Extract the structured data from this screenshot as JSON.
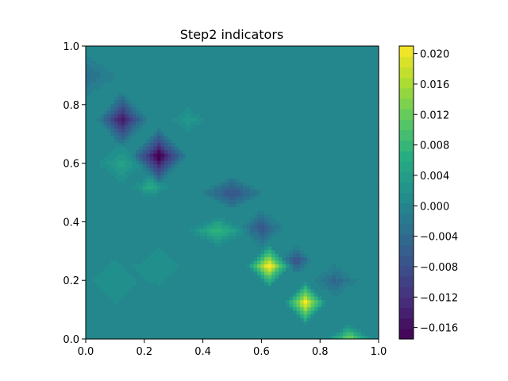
{
  "chart_data": {
    "type": "heatmap",
    "title": "Step2 indicators",
    "xlabel": "",
    "ylabel": "",
    "xlim": [
      0,
      1
    ],
    "ylim": [
      0,
      1
    ],
    "x_ticks": [
      "0.0",
      "0.2",
      "0.4",
      "0.6",
      "0.8",
      "1.0"
    ],
    "y_ticks": [
      "0.0",
      "0.2",
      "0.4",
      "0.6",
      "0.8",
      "1.0"
    ],
    "colormap": "viridis",
    "colorbar": {
      "min": -0.0175,
      "max": 0.021,
      "ticks": [
        "−0.016",
        "−0.012",
        "−0.008",
        "−0.004",
        "0.000",
        "0.004",
        "0.008",
        "0.012",
        "0.016",
        "0.020"
      ]
    },
    "grid": false,
    "features": [
      {
        "x": 0.0,
        "y": 0.9,
        "value": -0.003,
        "rx": 0.12,
        "ry": 0.08
      },
      {
        "x": 0.125,
        "y": 0.75,
        "value": -0.013,
        "rx": 0.09,
        "ry": 0.1
      },
      {
        "x": 0.25,
        "y": 0.625,
        "value": -0.016,
        "rx": 0.1,
        "ry": 0.1
      },
      {
        "x": 0.12,
        "y": 0.6,
        "value": 0.004,
        "rx": 0.1,
        "ry": 0.09
      },
      {
        "x": 0.35,
        "y": 0.75,
        "value": 0.003,
        "rx": 0.08,
        "ry": 0.06
      },
      {
        "x": 0.22,
        "y": 0.52,
        "value": 0.005,
        "rx": 0.08,
        "ry": 0.05
      },
      {
        "x": 0.5,
        "y": 0.5,
        "value": -0.007,
        "rx": 0.12,
        "ry": 0.06
      },
      {
        "x": 0.45,
        "y": 0.37,
        "value": 0.007,
        "rx": 0.12,
        "ry": 0.06
      },
      {
        "x": 0.6,
        "y": 0.38,
        "value": -0.006,
        "rx": 0.08,
        "ry": 0.07
      },
      {
        "x": 0.625,
        "y": 0.25,
        "value": 0.019,
        "rx": 0.08,
        "ry": 0.08
      },
      {
        "x": 0.72,
        "y": 0.27,
        "value": -0.007,
        "rx": 0.06,
        "ry": 0.05
      },
      {
        "x": 0.75,
        "y": 0.125,
        "value": 0.018,
        "rx": 0.08,
        "ry": 0.08
      },
      {
        "x": 0.85,
        "y": 0.2,
        "value": -0.004,
        "rx": 0.08,
        "ry": 0.06
      },
      {
        "x": 0.9,
        "y": 0.0,
        "value": 0.012,
        "rx": 0.09,
        "ry": 0.06
      },
      {
        "x": 0.1,
        "y": 0.2,
        "value": 0.002,
        "rx": 0.15,
        "ry": 0.15
      },
      {
        "x": 0.25,
        "y": 0.25,
        "value": 0.002,
        "rx": 0.12,
        "ry": 0.12
      }
    ]
  }
}
